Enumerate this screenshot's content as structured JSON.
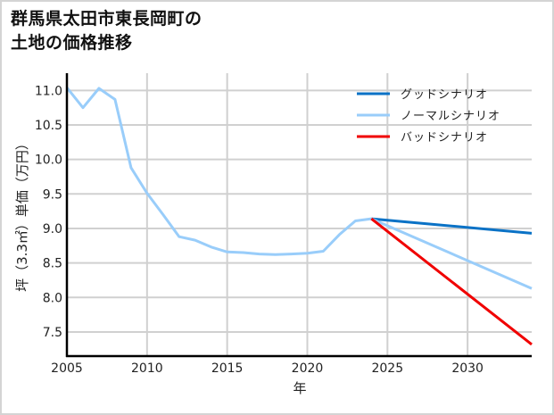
{
  "title": {
    "line1": "群馬県太田市東長岡町の",
    "line2": "土地の価格推移"
  },
  "chart_data": {
    "type": "line",
    "title": "群馬県太田市東長岡町の土地の価格推移",
    "xlabel": "年",
    "ylabel": "坪（3.3㎡）単価（万円）",
    "xlim": [
      2005,
      2034
    ],
    "ylim": [
      7.15,
      11.25
    ],
    "xticks": [
      2005,
      2010,
      2015,
      2020,
      2025,
      2030
    ],
    "yticks": [
      7.5,
      8.0,
      8.5,
      9.0,
      9.5,
      10.0,
      10.5,
      11.0
    ],
    "ytick_labels": [
      "7.5",
      "8.0",
      "8.5",
      "9.0",
      "9.5",
      "10.0",
      "10.5",
      "11.0"
    ],
    "grid": true,
    "legend_position": "upper right",
    "series": [
      {
        "name": "グッドシナリオ",
        "color": "#0a72c6",
        "x": [
          2024,
          2034
        ],
        "values": [
          9.14,
          8.93
        ]
      },
      {
        "name": "ノーマルシナリオ",
        "color": "#99cdfa",
        "x": [
          2005,
          2006,
          2007,
          2008,
          2009,
          2010,
          2011,
          2012,
          2013,
          2014,
          2015,
          2016,
          2017,
          2018,
          2019,
          2020,
          2021,
          2022,
          2023,
          2024,
          2034
        ],
        "values": [
          11.04,
          10.75,
          11.03,
          10.87,
          9.88,
          9.51,
          9.2,
          8.88,
          8.83,
          8.73,
          8.66,
          8.65,
          8.63,
          8.62,
          8.63,
          8.64,
          8.67,
          8.91,
          9.11,
          9.14,
          8.13
        ]
      },
      {
        "name": "バッドシナリオ",
        "color": "#f00000",
        "x": [
          2024,
          2034
        ],
        "values": [
          9.14,
          7.32
        ]
      }
    ]
  }
}
